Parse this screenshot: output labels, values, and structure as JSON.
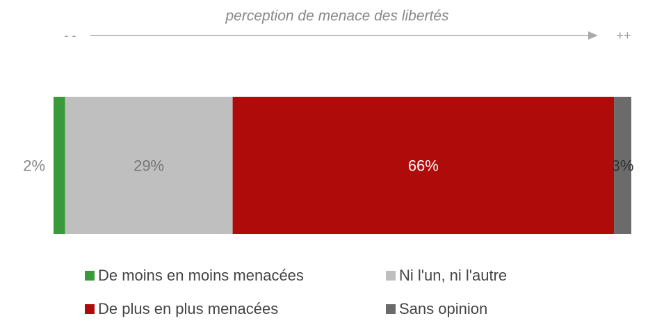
{
  "chart_data": {
    "type": "stacked_bar",
    "title": "perception de menace des libertés",
    "annotations": {
      "left": "- -",
      "right": "++"
    },
    "xlim": [
      0,
      100
    ],
    "series": [
      {
        "name": "De moins en moins menacées",
        "color": "#3a9a3a",
        "values": [
          2
        ],
        "value_labels": [
          "2%"
        ]
      },
      {
        "name": "Ni l'un, ni l'autre",
        "color": "#bfbfbf",
        "values": [
          29
        ],
        "value_labels": [
          "29%"
        ]
      },
      {
        "name": "De plus en plus menacées",
        "color": "#b00b0b",
        "values": [
          66
        ],
        "value_labels": [
          "66%"
        ]
      },
      {
        "name": "Sans opinion",
        "color": "#6b6b6b",
        "values": [
          3
        ],
        "value_labels": [
          "3%"
        ]
      }
    ]
  }
}
